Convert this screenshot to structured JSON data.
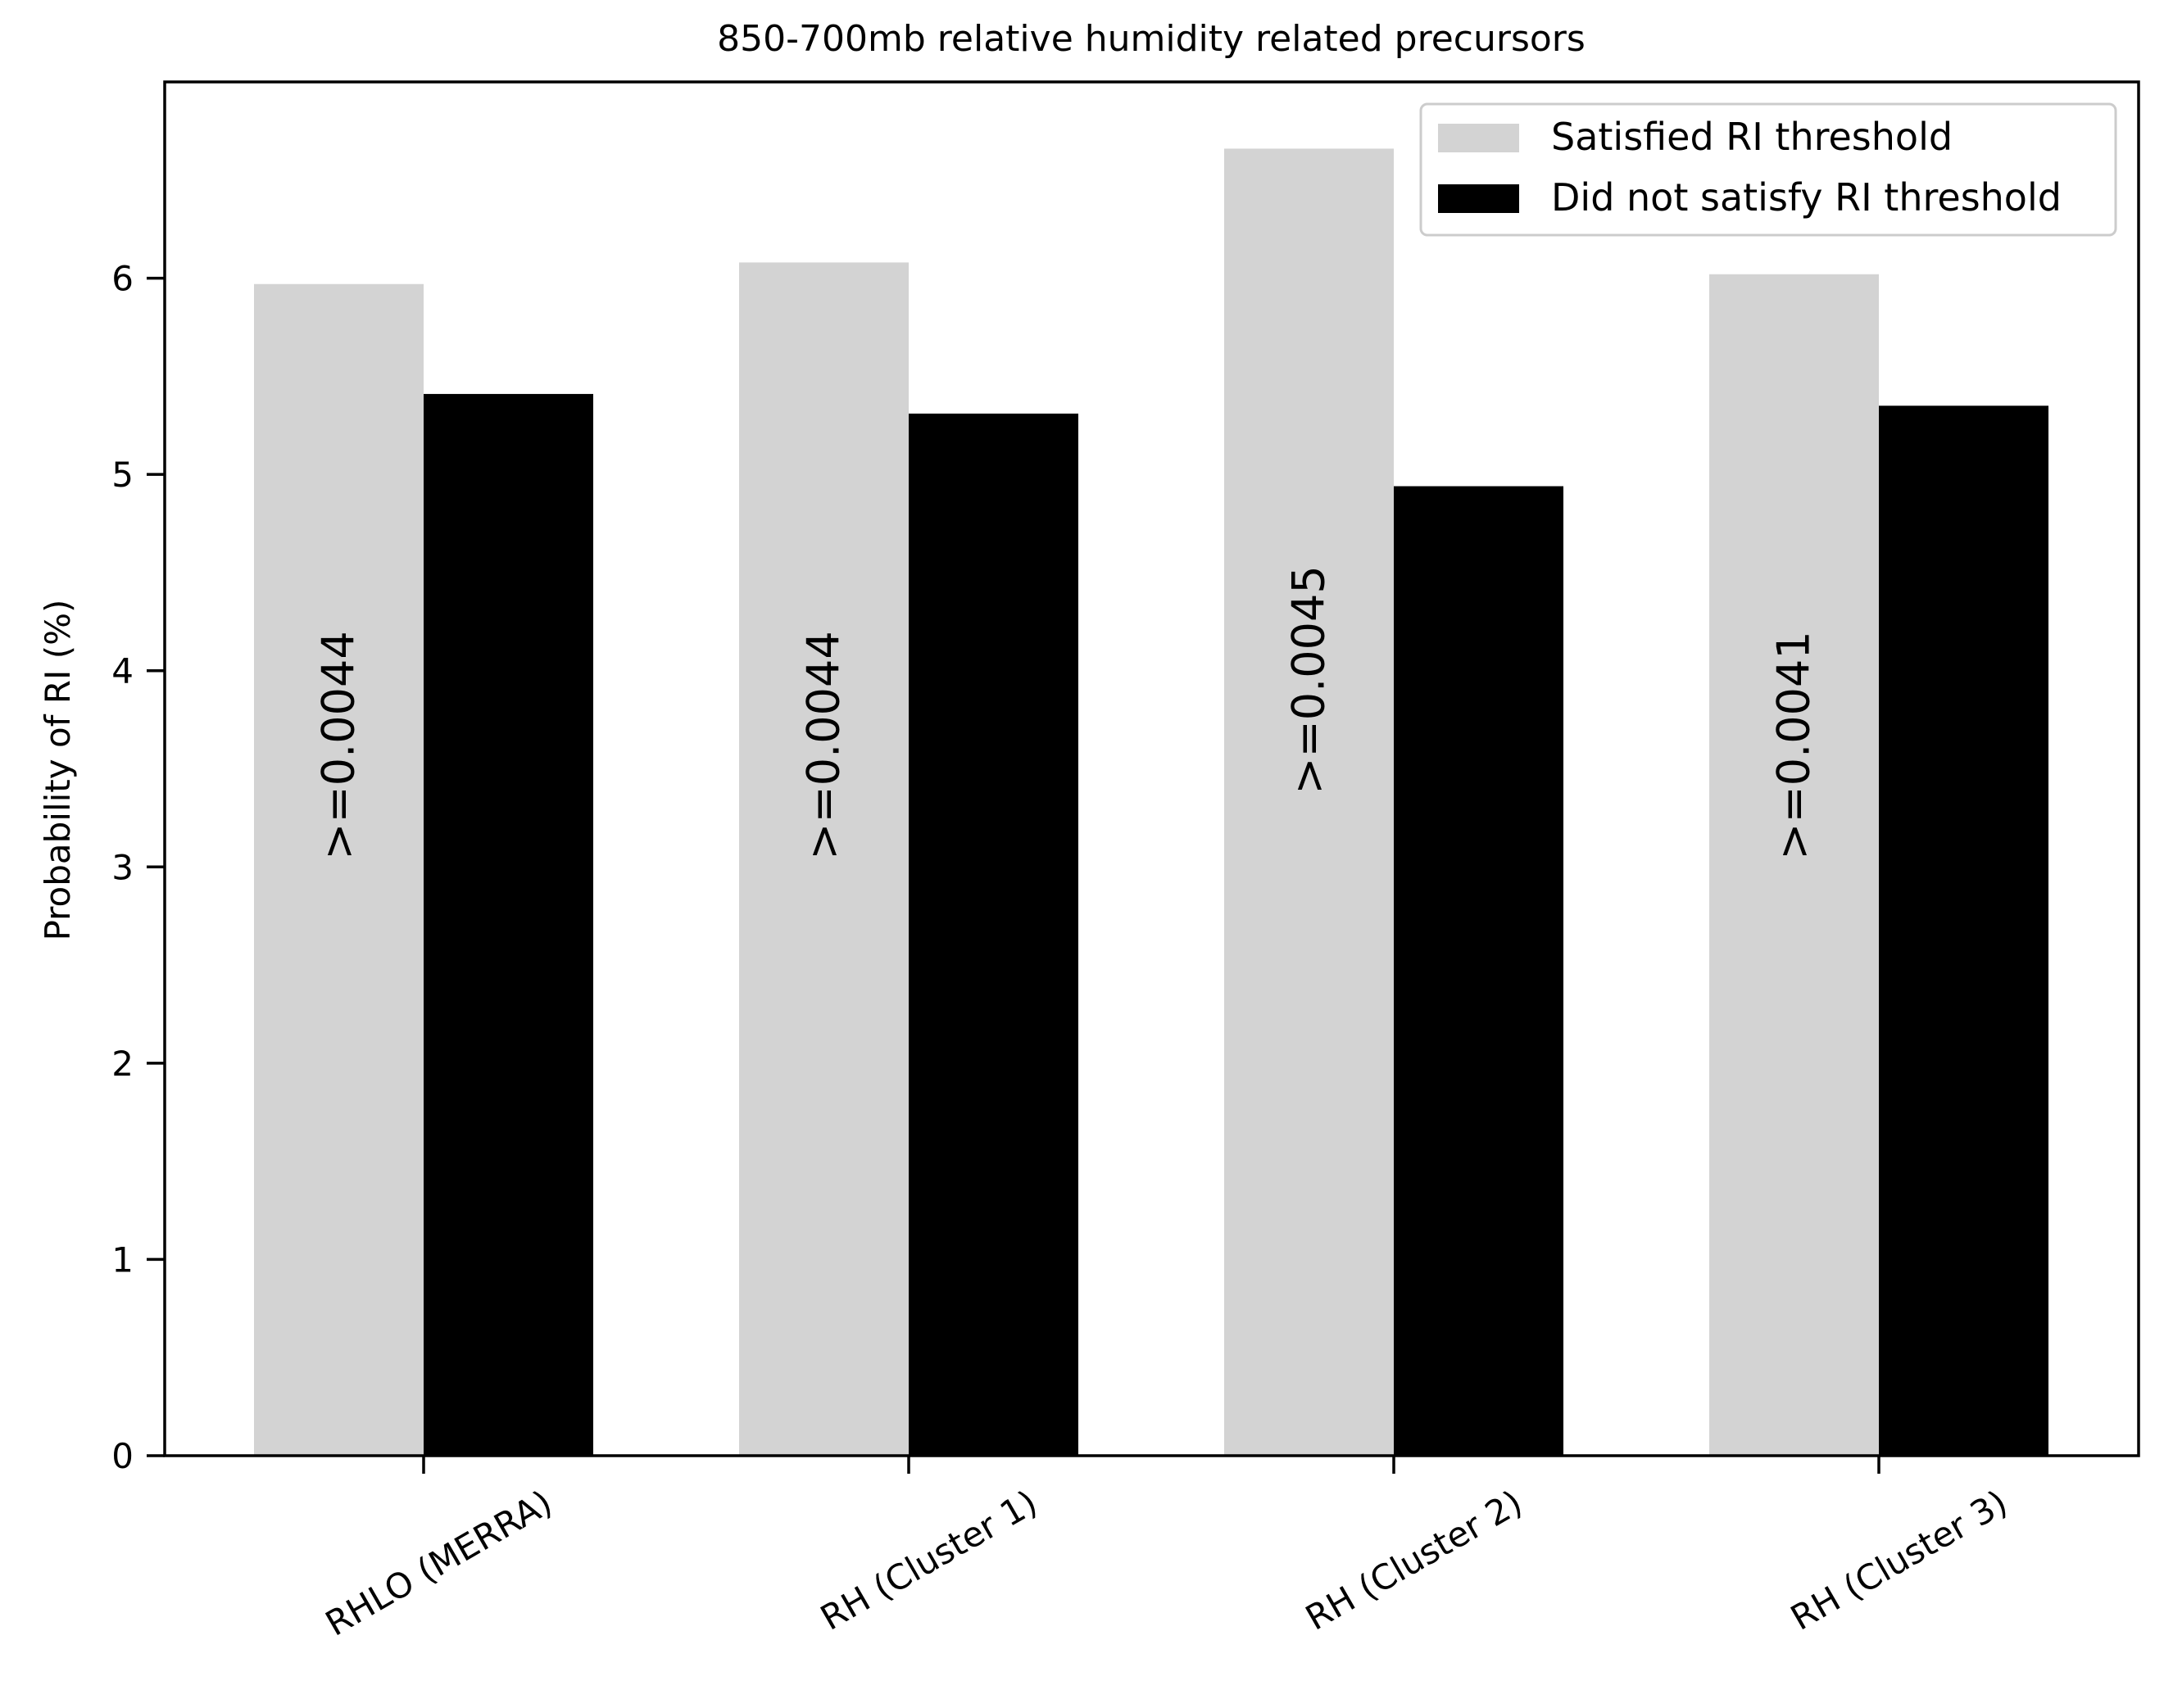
{
  "chart_data": {
    "type": "bar",
    "title": "850-700mb relative humidity related precursors",
    "xlabel": "",
    "ylabel": "Probability of RI (%)",
    "categories": [
      "RHLO (MERRA)",
      "RH (Cluster 1)",
      "RH (Cluster 2)",
      "RH (Cluster 3)"
    ],
    "series": [
      {
        "name": "Satisfied RI threshold",
        "color": "#d3d3d3",
        "values": [
          5.97,
          6.08,
          6.66,
          6.02
        ]
      },
      {
        "name": "Did not satisfy RI threshold",
        "color": "#000000",
        "values": [
          5.41,
          5.31,
          4.94,
          5.35
        ]
      }
    ],
    "annotations": [
      ">=0.0044",
      ">=0.0044",
      ">=0.0045",
      ">=0.0041"
    ],
    "yticks": [
      "0",
      "1",
      "2",
      "3",
      "4",
      "5",
      "6"
    ],
    "ylim": [
      0,
      7.0
    ],
    "grid": false,
    "legend_position": "top-right"
  }
}
